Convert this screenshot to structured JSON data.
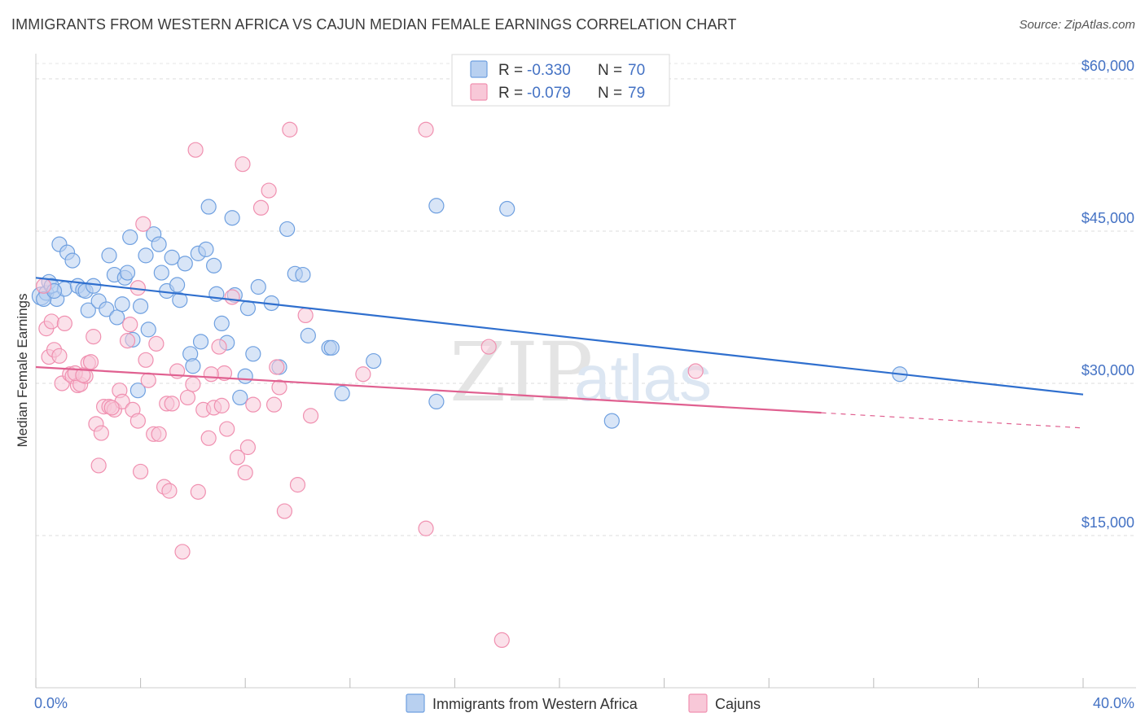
{
  "title": "IMMIGRANTS FROM WESTERN AFRICA VS CAJUN MEDIAN FEMALE EARNINGS CORRELATION CHART",
  "source": "Source: ZipAtlas.com",
  "watermark": {
    "zip": "ZIP",
    "atlas": "atlas"
  },
  "chart_data": {
    "type": "scatter",
    "xlabel": "",
    "ylabel": "Median Female Earnings",
    "xlim": [
      0,
      40
    ],
    "ylim": [
      0,
      62000
    ],
    "x_tick_labels": [
      "0.0%",
      "40.0%"
    ],
    "y_ticks": [
      15000,
      30000,
      45000,
      60000
    ],
    "y_tick_labels": [
      "$15,000",
      "$30,000",
      "$45,000",
      "$60,000"
    ],
    "grid": true,
    "legend_position": "top-center",
    "series": [
      {
        "name": "Immigrants from Western Africa",
        "color": "#6fa0e0",
        "fill": "#b8d0f0",
        "line_color": "#2f6fce",
        "R": "-0.330",
        "N": "70",
        "trend": {
          "x0": 0.0,
          "y0": 40400,
          "x1": 40.0,
          "y1": 28900
        },
        "points": [
          [
            0.2,
            38600
          ],
          [
            0.4,
            38900
          ],
          [
            0.5,
            40000
          ],
          [
            0.6,
            39600
          ],
          [
            0.8,
            38300
          ],
          [
            0.9,
            43700
          ],
          [
            1.1,
            39300
          ],
          [
            1.2,
            42900
          ],
          [
            1.4,
            42100
          ],
          [
            1.6,
            39600
          ],
          [
            1.8,
            39200
          ],
          [
            1.9,
            39100
          ],
          [
            2.0,
            37200
          ],
          [
            2.2,
            39600
          ],
          [
            2.4,
            38100
          ],
          [
            2.7,
            37300
          ],
          [
            2.8,
            42600
          ],
          [
            3.0,
            40700
          ],
          [
            3.1,
            36500
          ],
          [
            3.3,
            37800
          ],
          [
            3.4,
            40400
          ],
          [
            3.5,
            40900
          ],
          [
            3.6,
            44400
          ],
          [
            3.7,
            34300
          ],
          [
            3.9,
            29300
          ],
          [
            4.0,
            37600
          ],
          [
            4.2,
            42600
          ],
          [
            4.3,
            35300
          ],
          [
            4.5,
            44700
          ],
          [
            4.7,
            43700
          ],
          [
            4.8,
            40900
          ],
          [
            5.0,
            39100
          ],
          [
            5.2,
            42400
          ],
          [
            5.4,
            39700
          ],
          [
            5.5,
            38200
          ],
          [
            5.7,
            41800
          ],
          [
            5.9,
            32900
          ],
          [
            6.0,
            31700
          ],
          [
            6.2,
            42800
          ],
          [
            6.3,
            34100
          ],
          [
            6.5,
            43200
          ],
          [
            6.6,
            47400
          ],
          [
            6.8,
            41600
          ],
          [
            6.9,
            38800
          ],
          [
            7.1,
            35900
          ],
          [
            7.3,
            34000
          ],
          [
            7.5,
            46300
          ],
          [
            7.6,
            38700
          ],
          [
            7.8,
            28600
          ],
          [
            8.0,
            30700
          ],
          [
            8.1,
            37400
          ],
          [
            8.3,
            32900
          ],
          [
            8.5,
            39500
          ],
          [
            9.0,
            37900
          ],
          [
            9.3,
            31600
          ],
          [
            9.6,
            45200
          ],
          [
            9.9,
            40800
          ],
          [
            10.2,
            40700
          ],
          [
            10.4,
            34700
          ],
          [
            11.2,
            33500
          ],
          [
            11.3,
            33500
          ],
          [
            11.7,
            29000
          ],
          [
            12.9,
            32200
          ],
          [
            15.3,
            47500
          ],
          [
            18.0,
            47200
          ],
          [
            15.3,
            28200
          ],
          [
            22.0,
            26300
          ],
          [
            33.0,
            30900
          ],
          [
            0.3,
            38300
          ],
          [
            0.7,
            39100
          ]
        ]
      },
      {
        "name": "Cajuns",
        "color": "#f090b0",
        "fill": "#f8c8d8",
        "line_color": "#e06090",
        "R": "-0.079",
        "N": "79",
        "trend": {
          "x0": 0.0,
          "y0": 31600,
          "x1": 30.0,
          "y1": 27100,
          "dash_x1": 40.0,
          "dash_y1": 25600
        },
        "points": [
          [
            0.3,
            39600
          ],
          [
            0.4,
            35400
          ],
          [
            0.5,
            32600
          ],
          [
            0.6,
            36100
          ],
          [
            0.7,
            33300
          ],
          [
            0.9,
            32700
          ],
          [
            1.0,
            30000
          ],
          [
            1.1,
            35900
          ],
          [
            1.3,
            30900
          ],
          [
            1.4,
            30700
          ],
          [
            1.6,
            29800
          ],
          [
            1.7,
            29900
          ],
          [
            1.9,
            30700
          ],
          [
            2.0,
            32000
          ],
          [
            2.2,
            34600
          ],
          [
            2.3,
            26000
          ],
          [
            2.5,
            25100
          ],
          [
            2.6,
            27700
          ],
          [
            2.8,
            27700
          ],
          [
            3.0,
            27400
          ],
          [
            3.2,
            29300
          ],
          [
            3.3,
            28200
          ],
          [
            3.5,
            34200
          ],
          [
            3.7,
            27400
          ],
          [
            3.9,
            26300
          ],
          [
            4.0,
            21300
          ],
          [
            4.2,
            32300
          ],
          [
            4.3,
            30300
          ],
          [
            4.5,
            25000
          ],
          [
            4.7,
            25000
          ],
          [
            4.9,
            19800
          ],
          [
            5.0,
            28000
          ],
          [
            5.2,
            28000
          ],
          [
            5.4,
            31200
          ],
          [
            5.6,
            13400
          ],
          [
            5.8,
            28600
          ],
          [
            6.0,
            29900
          ],
          [
            6.2,
            19300
          ],
          [
            6.4,
            27400
          ],
          [
            6.6,
            24600
          ],
          [
            6.8,
            27600
          ],
          [
            7.0,
            33600
          ],
          [
            7.1,
            27800
          ],
          [
            7.3,
            25500
          ],
          [
            7.5,
            38500
          ],
          [
            7.7,
            22700
          ],
          [
            7.9,
            51600
          ],
          [
            8.1,
            23700
          ],
          [
            8.3,
            27900
          ],
          [
            8.6,
            47300
          ],
          [
            8.9,
            49000
          ],
          [
            9.2,
            31600
          ],
          [
            9.5,
            17400
          ],
          [
            9.7,
            55000
          ],
          [
            10.0,
            20000
          ],
          [
            10.3,
            36700
          ],
          [
            10.5,
            26800
          ],
          [
            12.5,
            30900
          ],
          [
            14.9,
            55000
          ],
          [
            14.9,
            15700
          ],
          [
            17.3,
            33600
          ],
          [
            17.8,
            4700
          ],
          [
            25.2,
            31200
          ],
          [
            2.1,
            32100
          ],
          [
            1.5,
            31000
          ],
          [
            4.1,
            45700
          ],
          [
            3.9,
            39400
          ],
          [
            8.0,
            21200
          ],
          [
            9.3,
            29600
          ],
          [
            6.1,
            53000
          ],
          [
            2.4,
            21900
          ],
          [
            3.6,
            35800
          ],
          [
            5.1,
            19400
          ],
          [
            7.2,
            31000
          ],
          [
            1.8,
            30800
          ],
          [
            2.9,
            27600
          ],
          [
            4.6,
            33900
          ],
          [
            6.7,
            30900
          ],
          [
            9.1,
            27900
          ]
        ]
      }
    ]
  }
}
